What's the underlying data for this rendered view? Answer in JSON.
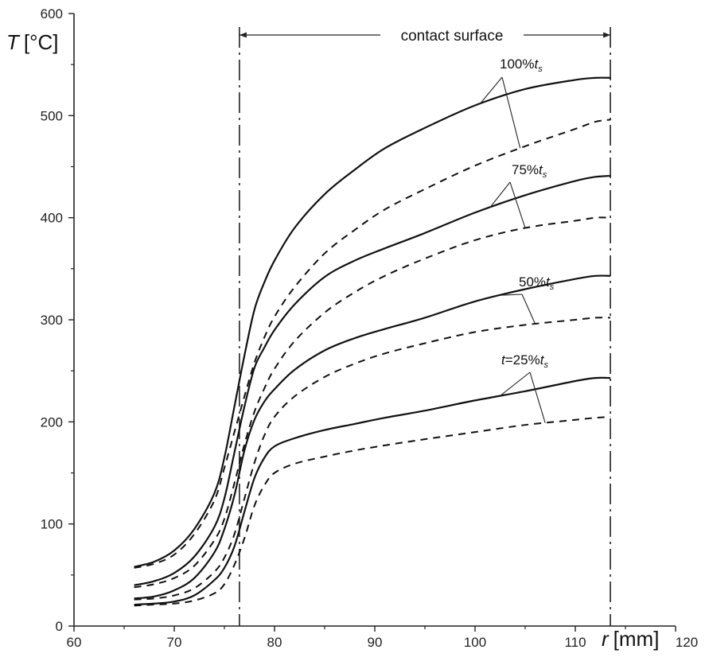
{
  "chart_data": {
    "type": "line",
    "title": "",
    "xlabel": {
      "symbol": "r",
      "unit": "[mm]"
    },
    "ylabel": {
      "symbol": "T",
      "unit": "[°C]"
    },
    "xlim": [
      60,
      120
    ],
    "ylim": [
      0,
      600
    ],
    "xticks": [
      60,
      70,
      80,
      90,
      100,
      110,
      120
    ],
    "yticks": [
      0,
      100,
      200,
      300,
      400,
      500,
      600
    ],
    "grid": false,
    "contact_surface": {
      "label": "contact surface",
      "from": 76.5,
      "to": 113.5
    },
    "time_labels": [
      {
        "prefix": "",
        "value": "100%",
        "sub": "s"
      },
      {
        "prefix": "",
        "value": "75%",
        "sub": "s"
      },
      {
        "prefix": "",
        "value": "50%",
        "sub": "s"
      },
      {
        "prefix": "=",
        "value": "25%",
        "sub": "s"
      }
    ],
    "series": [
      {
        "style": "solid",
        "x": [
          66,
          68,
          70,
          72,
          74,
          75,
          76,
          77,
          78,
          79,
          80,
          82,
          85,
          88,
          91,
          95,
          100,
          105,
          110,
          112,
          113.5
        ],
        "y": [
          58,
          63,
          74,
          95,
          130,
          165,
          215,
          265,
          310,
          337,
          358,
          390,
          423,
          447,
          468,
          488,
          510,
          526,
          535,
          537,
          537
        ]
      },
      {
        "style": "dashed",
        "x": [
          66,
          68,
          70,
          72,
          74,
          75,
          76,
          77,
          78,
          79,
          80,
          82,
          85,
          88,
          91,
          95,
          100,
          105,
          110,
          112,
          113.5
        ],
        "y": [
          57,
          61,
          70,
          90,
          123,
          155,
          190,
          225,
          258,
          283,
          303,
          332,
          365,
          388,
          408,
          428,
          451,
          470,
          487,
          494,
          496
        ]
      },
      {
        "style": "solid",
        "x": [
          66,
          68,
          70,
          72,
          74,
          75,
          76,
          77,
          78,
          79,
          80,
          82,
          85,
          88,
          91,
          95,
          100,
          105,
          110,
          112,
          113.5
        ],
        "y": [
          40,
          44,
          52,
          68,
          97,
          125,
          170,
          215,
          253,
          273,
          290,
          315,
          342,
          358,
          370,
          385,
          405,
          422,
          436,
          440,
          441
        ]
      },
      {
        "style": "dashed",
        "x": [
          66,
          68,
          70,
          72,
          74,
          75,
          76,
          77,
          78,
          79,
          80,
          82,
          85,
          88,
          91,
          95,
          100,
          105,
          110,
          112,
          113.5
        ],
        "y": [
          38,
          41,
          47,
          59,
          84,
          105,
          140,
          178,
          210,
          233,
          252,
          279,
          307,
          327,
          343,
          360,
          378,
          390,
          397,
          400,
          400
        ]
      },
      {
        "style": "solid",
        "x": [
          66,
          68,
          70,
          72,
          74,
          75,
          76,
          77,
          78,
          79,
          80,
          82,
          85,
          88,
          91,
          95,
          100,
          105,
          110,
          112,
          113.5
        ],
        "y": [
          27,
          29,
          35,
          47,
          72,
          95,
          128,
          172,
          202,
          220,
          232,
          251,
          270,
          282,
          291,
          302,
          318,
          330,
          340,
          343,
          343
        ]
      },
      {
        "style": "dashed",
        "x": [
          66,
          68,
          70,
          72,
          74,
          75,
          76,
          77,
          78,
          79,
          80,
          82,
          85,
          88,
          91,
          95,
          100,
          105,
          110,
          112,
          113.5
        ],
        "y": [
          26,
          27,
          30,
          37,
          53,
          67,
          90,
          125,
          160,
          187,
          205,
          225,
          244,
          257,
          267,
          277,
          288,
          295,
          300,
          302,
          302
        ]
      },
      {
        "style": "solid",
        "x": [
          66,
          68,
          70,
          72,
          74,
          75,
          76,
          77,
          78,
          79,
          80,
          82,
          85,
          88,
          91,
          95,
          100,
          105,
          110,
          112,
          113.5
        ],
        "y": [
          21,
          22,
          24,
          30,
          45,
          57,
          78,
          112,
          145,
          165,
          176,
          184,
          192,
          198,
          204,
          211,
          221,
          230,
          240,
          243,
          243
        ]
      },
      {
        "style": "dashed",
        "x": [
          66,
          68,
          70,
          72,
          74,
          75,
          76,
          77,
          78,
          79,
          80,
          82,
          85,
          88,
          91,
          95,
          100,
          105,
          110,
          112,
          113.5
        ],
        "y": [
          20,
          21,
          22,
          25,
          32,
          41,
          60,
          86,
          118,
          138,
          150,
          159,
          166,
          172,
          177,
          183,
          190,
          197,
          202,
          204,
          205
        ]
      }
    ]
  }
}
